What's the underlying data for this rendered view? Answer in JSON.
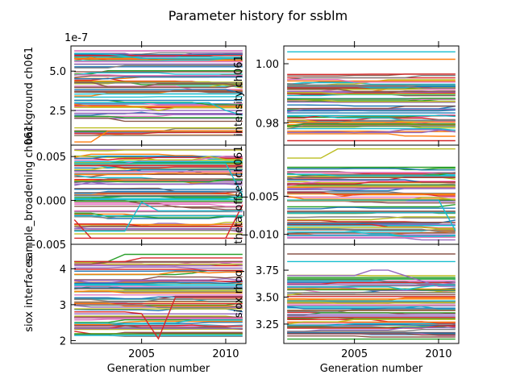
{
  "figure_title": "Parameter history for ssblm",
  "chart_data": [
    {
      "type": "line",
      "panel": "top-left",
      "ylabel": "background ch061",
      "xlabel": "",
      "offset_text": "1e-7",
      "xlim": [
        2000.8,
        2011.2
      ],
      "ylim": [
        0.3,
        6.6
      ],
      "yticks": [
        2.5,
        5.0
      ],
      "ytick_labels": [
        "2.5",
        "5.0"
      ],
      "xticks": [
        2005,
        2010
      ],
      "xtick_labels": [
        "",
        ""
      ],
      "band": [
        0.9,
        6.3
      ],
      "n_series": 70,
      "seed": 11,
      "series": [
        {
          "color": "#ff7f0e",
          "x": [
            2001,
            2002,
            2003,
            2004,
            2005,
            2006,
            2007,
            2008,
            2009,
            2010,
            2011
          ],
          "y": [
            0.5,
            0.5,
            1.2,
            1.2,
            1.2,
            1.2,
            1.2,
            1.2,
            1.2,
            1.2,
            1.2
          ]
        },
        {
          "color": "#8c564b",
          "x": [
            2001,
            2002,
            2003,
            2004,
            2005,
            2006,
            2007,
            2008,
            2009,
            2010,
            2011
          ],
          "y": [
            4.3,
            4.3,
            4.0,
            4.0,
            4.0,
            4.2,
            4.2,
            4.2,
            4.2,
            4.2,
            4.0
          ]
        },
        {
          "color": "#17becf",
          "x": [
            2001,
            2002,
            2003,
            2004,
            2005,
            2006,
            2007,
            2008,
            2009,
            2010,
            2011
          ],
          "y": [
            3.0,
            3.0,
            3.0,
            3.0,
            3.0,
            3.0,
            3.0,
            3.0,
            3.0,
            2.5,
            2.2
          ]
        }
      ]
    },
    {
      "type": "line",
      "panel": "top-right",
      "ylabel": "intensity ch061",
      "xlabel": "",
      "offset_text": "",
      "xlim": [
        2000.8,
        2011.2
      ],
      "ylim": [
        0.9725,
        1.006
      ],
      "yticks": [
        0.98,
        1.0
      ],
      "ytick_labels": [
        "0.98",
        "1.00"
      ],
      "xticks": [
        2005,
        2010
      ],
      "xtick_labels": [
        "",
        ""
      ],
      "band": [
        0.9755,
        0.9965
      ],
      "n_series": 70,
      "seed": 23,
      "series": [
        {
          "color": "#17becf",
          "x": [
            2001,
            2011
          ],
          "y": [
            1.004,
            1.004
          ]
        },
        {
          "color": "#ff7f0e",
          "x": [
            2001,
            2011
          ],
          "y": [
            1.0015,
            1.0015
          ]
        },
        {
          "color": "#d62728",
          "x": [
            2001,
            2011
          ],
          "y": [
            0.974,
            0.974
          ]
        },
        {
          "color": "#7f7f7f",
          "x": [
            2001,
            2002,
            2003,
            2004,
            2005,
            2006,
            2007,
            2008,
            2009,
            2010,
            2011
          ],
          "y": [
            0.978,
            0.979,
            0.979,
            0.979,
            0.979,
            0.979,
            0.979,
            0.979,
            0.979,
            0.979,
            0.979
          ]
        }
      ]
    },
    {
      "type": "line",
      "panel": "middle-left",
      "ylabel": "sample_broadening ch061",
      "xlabel": "",
      "offset_text": "",
      "xlim": [
        2000.8,
        2011.2
      ],
      "ylim": [
        -0.005,
        0.0063
      ],
      "yticks": [
        -0.005,
        0.0,
        0.005
      ],
      "ytick_labels": [
        "−0.005",
        "0.000",
        "0.005"
      ],
      "xticks": [
        2005,
        2010
      ],
      "xtick_labels": [
        "",
        ""
      ],
      "band": [
        -0.0042,
        0.0058
      ],
      "n_series": 70,
      "seed": 37,
      "series": [
        {
          "color": "#d62728",
          "x": [
            2001,
            2002,
            2003,
            2004,
            2005,
            2006,
            2007,
            2008,
            2009,
            2010,
            2011
          ],
          "y": [
            -0.0022,
            -0.0043,
            -0.0043,
            -0.0043,
            -0.0043,
            -0.0043,
            -0.0043,
            -0.0043,
            -0.0043,
            -0.0043,
            -0.0043
          ]
        },
        {
          "color": "#d62728",
          "x": [
            2001,
            2002,
            2003,
            2004,
            2005,
            2006,
            2007,
            2008,
            2009,
            2010,
            2011
          ],
          "y": [
            -0.0043,
            -0.0043,
            -0.0043,
            -0.0043,
            -0.0043,
            -0.0043,
            -0.0043,
            -0.0043,
            -0.0043,
            -0.0043,
            -0.0005
          ]
        },
        {
          "color": "#17becf",
          "x": [
            2001,
            2002,
            2003,
            2004,
            2005,
            2006,
            2007,
            2008,
            2009,
            2010,
            2011
          ],
          "y": [
            -0.0035,
            -0.0035,
            -0.0035,
            -0.0035,
            -0.0002,
            -0.0012,
            -0.0012,
            -0.0012,
            -0.0012,
            -0.0012,
            -0.0012
          ]
        },
        {
          "color": "#17becf",
          "x": [
            2001,
            2002,
            2003,
            2004,
            2005,
            2006,
            2007,
            2008,
            2009,
            2010,
            2011
          ],
          "y": [
            0.0042,
            0.0042,
            0.0042,
            0.0042,
            0.0042,
            0.0042,
            0.0042,
            0.0042,
            0.0042,
            0.0042,
            0.0006
          ]
        }
      ]
    },
    {
      "type": "line",
      "panel": "middle-right",
      "ylabel": "theta_offset ch061",
      "xlabel": "",
      "offset_text": "",
      "xlim": [
        2000.8,
        2011.2
      ],
      "ylim": [
        -0.0113,
        0.0017
      ],
      "yticks": [
        -0.01,
        -0.005
      ],
      "ytick_labels": [
        "−0.010",
        "−0.005"
      ],
      "xticks": [
        2005,
        2010
      ],
      "xtick_labels": [
        "",
        ""
      ],
      "band": [
        -0.011,
        -0.001
      ],
      "n_series": 70,
      "seed": 53,
      "series": [
        {
          "color": "#bcbd22",
          "x": [
            2001,
            2002,
            2003,
            2004,
            2005,
            2006,
            2007,
            2008,
            2009,
            2010,
            2011
          ],
          "y": [
            0.0,
            0.0,
            0.0,
            0.0012,
            0.0012,
            0.0012,
            0.0012,
            0.0012,
            0.0012,
            0.0012,
            0.0012
          ]
        },
        {
          "color": "#17becf",
          "x": [
            2001,
            2002,
            2003,
            2004,
            2005,
            2006,
            2007,
            2008,
            2009,
            2010,
            2011
          ],
          "y": [
            -0.0055,
            -0.0055,
            -0.0055,
            -0.0055,
            -0.0055,
            -0.0055,
            -0.0055,
            -0.0055,
            -0.0055,
            -0.0055,
            -0.0095
          ]
        }
      ]
    },
    {
      "type": "line",
      "panel": "bottom-left",
      "ylabel": "siox interfaces",
      "xlabel": "Generation number",
      "offset_text": "",
      "xlim": [
        2000.8,
        2011.2
      ],
      "ylim": [
        1.92,
        4.68
      ],
      "yticks": [
        2,
        3,
        4
      ],
      "ytick_labels": [
        "2",
        "3",
        "4"
      ],
      "xticks": [
        2005,
        2010
      ],
      "xtick_labels": [
        "2005",
        "2010"
      ],
      "band": [
        2.1,
        4.2
      ],
      "n_series": 70,
      "seed": 71,
      "series": [
        {
          "color": "#d62728",
          "x": [
            2001,
            2002,
            2003,
            2004,
            2005,
            2006,
            2007,
            2008,
            2009,
            2010,
            2011
          ],
          "y": [
            2.8,
            2.8,
            2.8,
            2.8,
            2.75,
            2.05,
            3.2,
            3.2,
            3.2,
            3.2,
            3.2
          ]
        },
        {
          "color": "#2ca02c",
          "x": [
            2001,
            2002,
            2003,
            2004,
            2005,
            2006,
            2007,
            2008,
            2009,
            2010,
            2011
          ],
          "y": [
            4.2,
            4.2,
            4.2,
            4.4,
            4.4,
            4.4,
            4.4,
            4.4,
            4.4,
            4.4,
            4.4
          ]
        },
        {
          "color": "#d62728",
          "x": [
            2001,
            2002,
            2003,
            2004,
            2005,
            2006,
            2007,
            2008,
            2009,
            2010,
            2011
          ],
          "y": [
            4.2,
            4.2,
            4.2,
            4.2,
            4.3,
            4.3,
            4.3,
            4.3,
            4.3,
            4.3,
            4.3
          ]
        }
      ]
    },
    {
      "type": "line",
      "panel": "bottom-right",
      "ylabel": "siox rhoq",
      "xlabel": "Generation number",
      "offset_text": "",
      "xlim": [
        2000.8,
        2011.2
      ],
      "ylim": [
        3.07,
        3.99
      ],
      "yticks": [
        3.25,
        3.5,
        3.75
      ],
      "ytick_labels": [
        "3.25",
        "3.50",
        "3.75"
      ],
      "xticks": [
        2005,
        2010
      ],
      "xtick_labels": [
        "2005",
        "2010"
      ],
      "band": [
        3.1,
        3.72
      ],
      "n_series": 70,
      "seed": 89,
      "series": [
        {
          "color": "#8c564b",
          "x": [
            2001,
            2011
          ],
          "y": [
            3.9,
            3.9
          ]
        },
        {
          "color": "#17becf",
          "x": [
            2001,
            2011
          ],
          "y": [
            3.83,
            3.83
          ]
        },
        {
          "color": "#9467bd",
          "x": [
            2001,
            2002,
            2003,
            2004,
            2005,
            2006,
            2007,
            2008,
            2009,
            2010,
            2011
          ],
          "y": [
            3.7,
            3.7,
            3.7,
            3.7,
            3.7,
            3.75,
            3.75,
            3.7,
            3.65,
            3.6,
            3.6
          ]
        }
      ]
    }
  ],
  "palette": [
    "#1f77b4",
    "#ff7f0e",
    "#2ca02c",
    "#d62728",
    "#9467bd",
    "#8c564b",
    "#e377c2",
    "#7f7f7f",
    "#bcbd22",
    "#17becf"
  ]
}
